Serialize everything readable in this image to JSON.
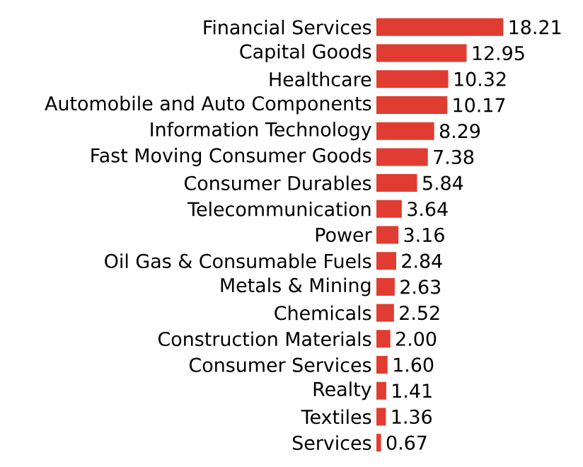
{
  "chart_data": {
    "type": "bar",
    "orientation": "horizontal",
    "color": "#e03c31",
    "categories": [
      "Financial Services",
      "Capital Goods",
      "Healthcare",
      "Automobile and Auto Components",
      "Information Technology",
      "Fast Moving Consumer Goods",
      "Consumer Durables",
      "Telecommunication",
      "Power",
      "Oil Gas & Consumable Fuels",
      "Metals & Mining",
      "Chemicals",
      "Construction Materials",
      "Consumer Services",
      "Realty",
      "Textiles",
      "Services"
    ],
    "values": [
      18.21,
      12.95,
      10.32,
      10.17,
      8.29,
      7.38,
      5.84,
      3.64,
      3.16,
      2.84,
      2.63,
      2.52,
      2.0,
      1.6,
      1.41,
      1.36,
      0.67
    ],
    "value_labels": [
      "18.21",
      "12.95",
      "10.32",
      "10.17",
      "8.29",
      "7.38",
      "5.84",
      "3.64",
      "3.16",
      "2.84",
      "2.63",
      "2.52",
      "2.00",
      "1.60",
      "1.41",
      "1.36",
      "0.67"
    ]
  }
}
